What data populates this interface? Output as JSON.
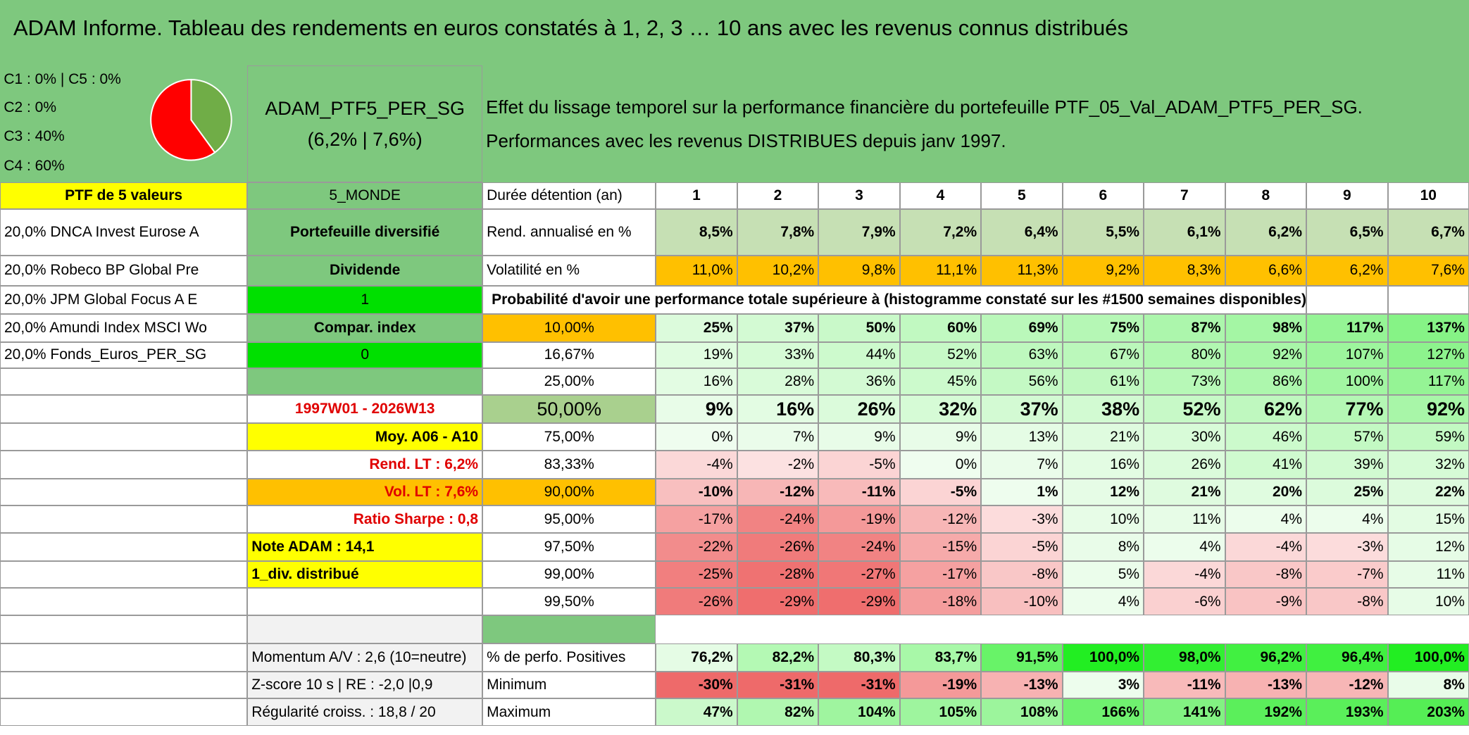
{
  "header": {
    "title": "ADAM Informe. Tableau des rendements en euros constatés à 1, 2, 3 … 10 ans avec les revenus connus distribués"
  },
  "allocation": {
    "lines": [
      "C1 : 0% | C5 : 0%",
      "C2 : 0%",
      "C3 : 40%",
      "C4 : 60%"
    ],
    "pie": [
      {
        "value": 40,
        "color": "#70ad47"
      },
      {
        "value": 60,
        "color": "#ff0000"
      }
    ]
  },
  "portfolio": {
    "name": "ADAM_PTF5_PER_SG",
    "perf": "(6,2% | 7,6%)"
  },
  "description": "Effet du lissage temporel sur la performance financière du portefeuille PTF_05_Val_ADAM_PTF5_PER_SG. Performances avec les revenus DISTRIBUES depuis janv 1997.",
  "funds": {
    "heading": "PTF de 5 valeurs",
    "items": [
      "20,0% DNCA Invest Eurose A",
      "20,0% Robeco BP Global Pre",
      "20,0% JPM Global Focus A E",
      "20,0% Amundi Index MSCI Wo",
      "20,0% Fonds_Euros_PER_SG"
    ]
  },
  "profile": {
    "zone": "5_MONDE",
    "type": "Portefeuille diversifié",
    "income": "Dividende",
    "flag": "1",
    "compare_label": "Compar. index",
    "compare_flag": "0"
  },
  "summary": {
    "period": "1997W01 - 2026W13",
    "average": "Moy. A06 - A10",
    "return_lt": "Rend. LT : 6,2%",
    "vol_lt": "Vol. LT : 7,6%",
    "sharpe": "Ratio Sharpe : 0,8",
    "note": "Note ADAM : 14,1",
    "dividend": "1_div. distribué",
    "momentum": "Momentum A/V : 2,6 (10=neutre)",
    "zscore": "Z-score 10 s | RE : -2,0 |0,9",
    "regularity": "Régularité croiss. : 18,8 / 20"
  },
  "table": {
    "duration_label": "Durée détention (an)",
    "years": [
      1,
      2,
      3,
      4,
      5,
      6,
      7,
      8,
      9,
      10
    ],
    "rend": {
      "label": "Rend. annualisé en %",
      "values": [
        "8,5%",
        "7,8%",
        "7,9%",
        "7,2%",
        "6,4%",
        "5,5%",
        "6,1%",
        "6,2%",
        "6,5%",
        "6,7%"
      ]
    },
    "vol": {
      "label": "Volatilité en %",
      "values": [
        "11,0%",
        "10,2%",
        "9,8%",
        "11,1%",
        "11,3%",
        "9,2%",
        "8,3%",
        "6,6%",
        "6,2%",
        "7,6%"
      ]
    },
    "probability_title": "Probabilité d'avoir une performance totale supérieure à (histogramme constaté sur les #1500 semaines disponibles)",
    "quantiles": [
      {
        "label": "10,00%",
        "values": [
          "25%",
          "37%",
          "50%",
          "60%",
          "69%",
          "75%",
          "87%",
          "98%",
          "117%",
          "137%"
        ]
      },
      {
        "label": "16,67%",
        "values": [
          "19%",
          "33%",
          "44%",
          "52%",
          "63%",
          "67%",
          "80%",
          "92%",
          "107%",
          "127%"
        ]
      },
      {
        "label": "25,00%",
        "values": [
          "16%",
          "28%",
          "36%",
          "45%",
          "56%",
          "61%",
          "73%",
          "86%",
          "100%",
          "117%"
        ]
      },
      {
        "label": "50,00%",
        "values": [
          "9%",
          "16%",
          "26%",
          "32%",
          "37%",
          "38%",
          "52%",
          "62%",
          "77%",
          "92%"
        ]
      },
      {
        "label": "75,00%",
        "values": [
          "0%",
          "7%",
          "9%",
          "9%",
          "13%",
          "21%",
          "30%",
          "46%",
          "57%",
          "59%"
        ]
      },
      {
        "label": "83,33%",
        "values": [
          "-4%",
          "-2%",
          "-5%",
          "0%",
          "7%",
          "16%",
          "26%",
          "41%",
          "39%",
          "32%"
        ]
      },
      {
        "label": "90,00%",
        "values": [
          "-10%",
          "-12%",
          "-11%",
          "-5%",
          "1%",
          "12%",
          "21%",
          "20%",
          "25%",
          "22%"
        ]
      },
      {
        "label": "95,00%",
        "values": [
          "-17%",
          "-24%",
          "-19%",
          "-12%",
          "-3%",
          "10%",
          "11%",
          "4%",
          "4%",
          "15%"
        ]
      },
      {
        "label": "97,50%",
        "values": [
          "-22%",
          "-26%",
          "-24%",
          "-15%",
          "-5%",
          "8%",
          "4%",
          "-4%",
          "-3%",
          "12%"
        ]
      },
      {
        "label": "99,00%",
        "values": [
          "-25%",
          "-28%",
          "-27%",
          "-17%",
          "-8%",
          "5%",
          "-4%",
          "-8%",
          "-7%",
          "11%"
        ]
      },
      {
        "label": "99,50%",
        "values": [
          "-26%",
          "-29%",
          "-29%",
          "-18%",
          "-10%",
          "4%",
          "-6%",
          "-9%",
          "-8%",
          "10%"
        ]
      }
    ],
    "stats": [
      {
        "label": "% de perfo. Positives",
        "values": [
          "76,2%",
          "82,2%",
          "80,3%",
          "83,7%",
          "91,5%",
          "100,0%",
          "98,0%",
          "96,2%",
          "96,4%",
          "100,0%"
        ]
      },
      {
        "label": "Minimum",
        "values": [
          "-30%",
          "-31%",
          "-31%",
          "-19%",
          "-13%",
          "3%",
          "-11%",
          "-13%",
          "-12%",
          "8%"
        ]
      },
      {
        "label": "Maximum",
        "values": [
          "47%",
          "82%",
          "104%",
          "105%",
          "108%",
          "166%",
          "141%",
          "192%",
          "193%",
          "203%"
        ]
      }
    ]
  }
}
